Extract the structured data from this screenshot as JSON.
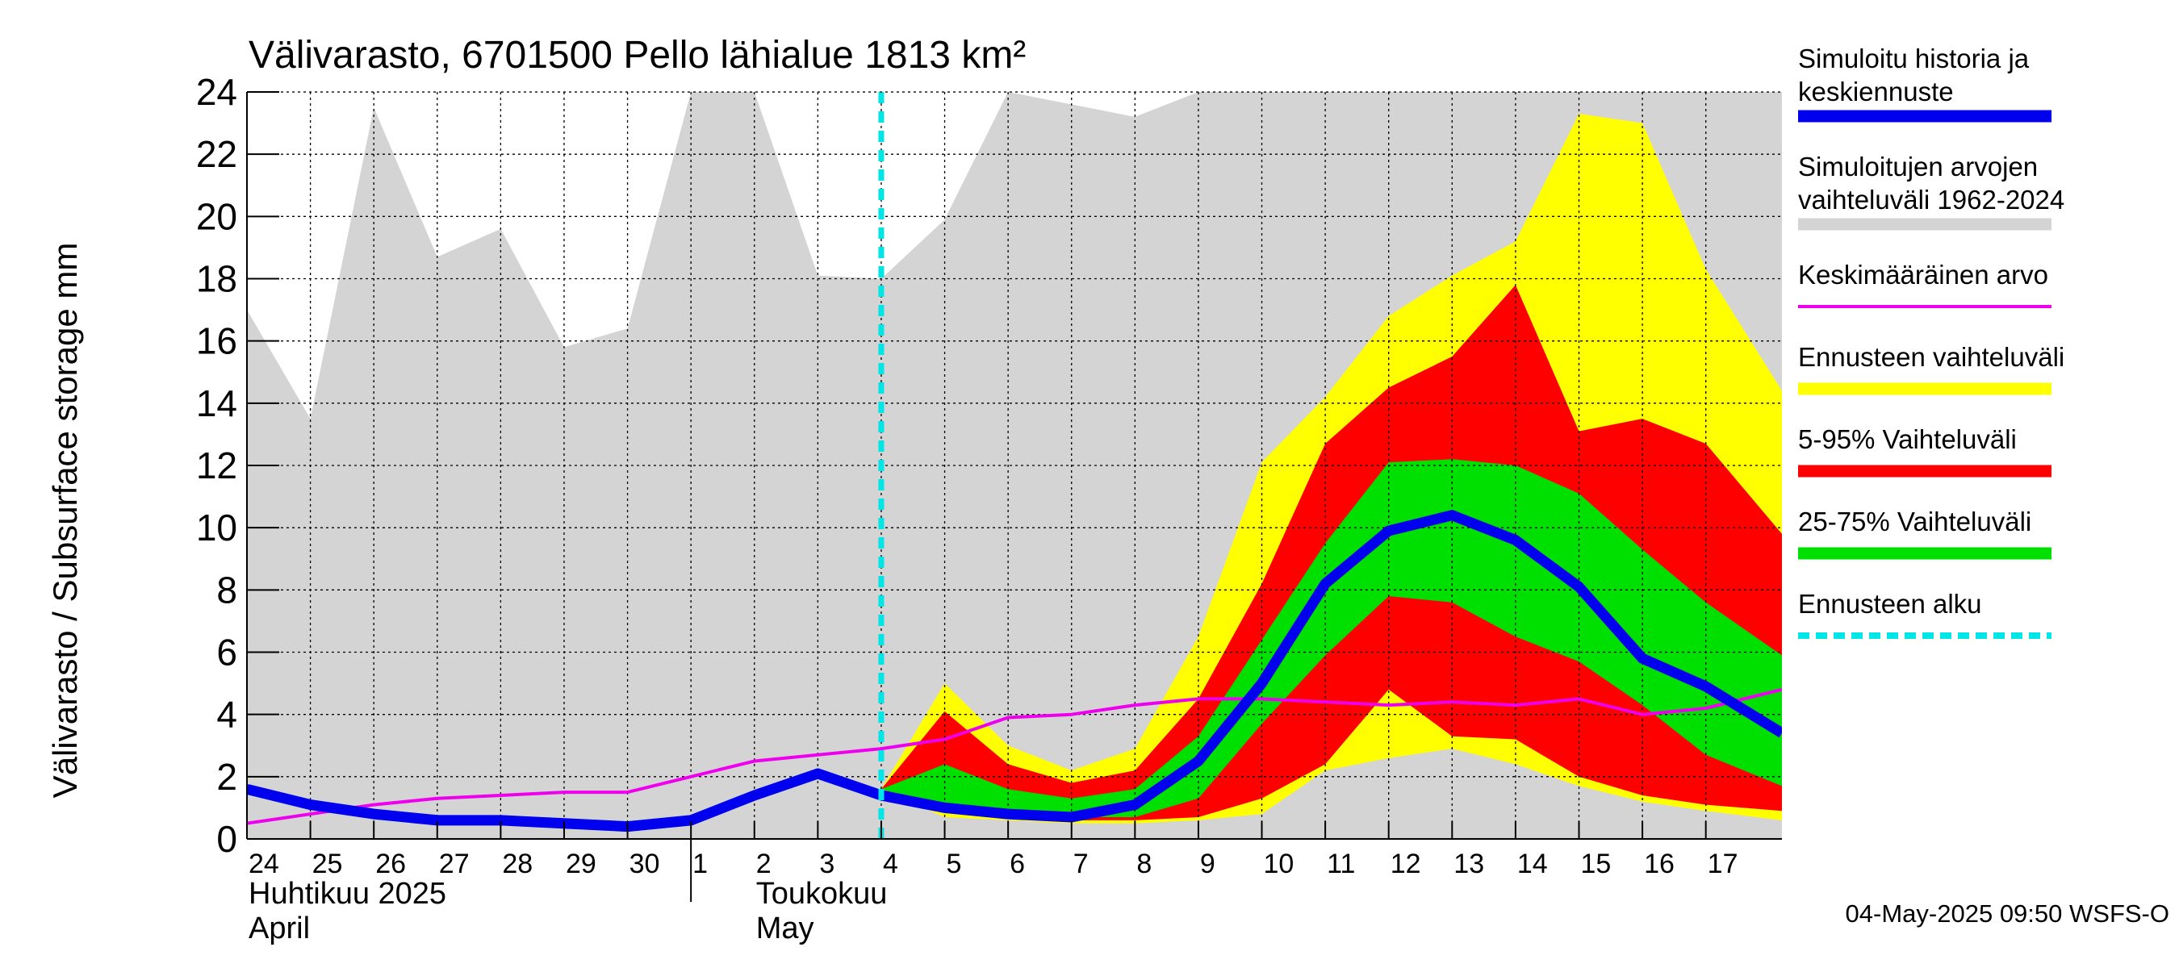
{
  "chart_data": {
    "type": "area",
    "title": "Välivarasto, 6701500 Pello lähialue 1813 km²",
    "ylabel": "Välivarasto / Subsurface storage  mm",
    "xlabel": "",
    "ylim": [
      0,
      24
    ],
    "yticks": [
      0,
      2,
      4,
      6,
      8,
      10,
      12,
      14,
      16,
      18,
      20,
      22,
      24
    ],
    "xlim": [
      0,
      24.2
    ],
    "grid": true,
    "legend_position": "right",
    "x_tick_labels": [
      {
        "x": 0,
        "label": "24"
      },
      {
        "x": 1,
        "label": "25"
      },
      {
        "x": 2,
        "label": "26"
      },
      {
        "x": 3,
        "label": "27"
      },
      {
        "x": 4,
        "label": "28"
      },
      {
        "x": 5,
        "label": "29"
      },
      {
        "x": 6,
        "label": "30"
      },
      {
        "x": 7,
        "label": "1"
      },
      {
        "x": 8,
        "label": "2"
      },
      {
        "x": 9,
        "label": "3"
      },
      {
        "x": 10,
        "label": "4"
      },
      {
        "x": 11,
        "label": "5"
      },
      {
        "x": 12,
        "label": "6"
      },
      {
        "x": 13,
        "label": "7"
      },
      {
        "x": 14,
        "label": "8"
      },
      {
        "x": 15,
        "label": "9"
      },
      {
        "x": 16,
        "label": "10"
      },
      {
        "x": 17,
        "label": "11"
      },
      {
        "x": 18,
        "label": "12"
      },
      {
        "x": 19,
        "label": "13"
      },
      {
        "x": 20,
        "label": "14"
      },
      {
        "x": 21,
        "label": "15"
      },
      {
        "x": 22,
        "label": "16"
      },
      {
        "x": 23,
        "label": "17"
      }
    ],
    "month_labels": [
      {
        "x": 0,
        "line1": "Huhtikuu  2025",
        "line2": "April"
      },
      {
        "x": 8,
        "line1": "Toukokuu",
        "line2": "May"
      }
    ],
    "month_divider_x": 7,
    "forecast_start_x": 10,
    "timestamp": "04-May-2025 09:50 WSFS-O",
    "colors": {
      "history_band": "#d4d4d4",
      "forecast_band": "#ffff00",
      "band_5_95": "#ff0000",
      "band_25_75": "#00e000",
      "median": "#0000ee",
      "mean": "#ee00ee",
      "forecast_start": "#00e5e5"
    },
    "legend": [
      {
        "label": "Simuloitu historia ja keskiennuste",
        "line1": "Simuloitu historia ja",
        "line2": "keskiennuste",
        "color": "#0000ee",
        "style": "thick"
      },
      {
        "label": "Simuloitujen arvojen vaihteluväli 1962-2024",
        "line1": "Simuloitujen arvojen",
        "line2": "vaihteluväli 1962-2024",
        "color": "#d4d4d4",
        "style": "thick"
      },
      {
        "label": "Keskimääräinen arvo",
        "line1": "Keskimääräinen arvo",
        "line2": "",
        "color": "#ee00ee",
        "style": "thin"
      },
      {
        "label": "Ennusteen vaihteluväli",
        "line1": "Ennusteen vaihteluväli",
        "line2": "",
        "color": "#ffff00",
        "style": "thick"
      },
      {
        "label": "5-95% Vaihteluväli",
        "line1": "5-95% Vaihteluväli",
        "line2": "",
        "color": "#ff0000",
        "style": "thick"
      },
      {
        "label": "25-75% Vaihteluväli",
        "line1": "25-75% Vaihteluväli",
        "line2": "",
        "color": "#00e000",
        "style": "thick"
      },
      {
        "label": "Ennusteen alku",
        "line1": "Ennusteen alku",
        "line2": "",
        "color": "#00e5e5",
        "style": "dashed"
      }
    ],
    "series": [
      {
        "name": "Simuloitujen arvojen vaihteluväli 1962-2024",
        "kind": "band",
        "x": [
          0,
          1,
          2,
          3,
          4,
          5,
          6,
          7,
          8,
          9,
          10,
          11,
          12,
          13,
          14,
          15,
          16,
          17,
          18,
          19,
          20,
          21,
          22,
          23,
          24.2
        ],
        "low": [
          0,
          0,
          0,
          0,
          0,
          0,
          0,
          0,
          0,
          0,
          0,
          0,
          0,
          0,
          0,
          0,
          0,
          0,
          0,
          0,
          0,
          0,
          0,
          0,
          0
        ],
        "high": [
          17.0,
          13.5,
          23.5,
          18.7,
          19.6,
          15.8,
          16.4,
          24,
          24,
          18.1,
          18.0,
          19.9,
          24,
          23.6,
          23.2,
          24,
          24,
          24,
          24,
          24,
          24,
          24,
          24,
          24,
          24
        ]
      },
      {
        "name": "Ennusteen vaihteluväli",
        "kind": "band",
        "x": [
          10,
          11,
          12,
          13,
          14,
          15,
          16,
          17,
          18,
          19,
          20,
          21,
          22,
          23,
          24.2
        ],
        "low": [
          1.6,
          0.7,
          0.6,
          0.5,
          0.5,
          0.6,
          0.8,
          2.2,
          2.6,
          2.9,
          2.4,
          1.7,
          1.2,
          0.9,
          0.6
        ],
        "high": [
          1.6,
          5.0,
          3.0,
          2.2,
          2.9,
          6.5,
          12.1,
          14.2,
          16.8,
          18.1,
          19.2,
          23.3,
          23.0,
          18.3,
          14.4
        ]
      },
      {
        "name": "5-95% Vaihteluväli",
        "kind": "band",
        "x": [
          10,
          11,
          12,
          13,
          14,
          15,
          16,
          17,
          18,
          19,
          20,
          21,
          22,
          23,
          24.2
        ],
        "low": [
          1.6,
          0.9,
          0.7,
          0.6,
          0.6,
          0.7,
          1.3,
          2.4,
          4.8,
          3.3,
          3.2,
          2.0,
          1.4,
          1.1,
          0.9
        ],
        "high": [
          1.6,
          4.1,
          2.4,
          1.8,
          2.2,
          4.5,
          8.2,
          12.7,
          14.5,
          15.5,
          17.8,
          13.1,
          13.5,
          12.7,
          9.8
        ]
      },
      {
        "name": "25-75% Vaihteluväli",
        "kind": "band",
        "x": [
          10,
          11,
          12,
          13,
          14,
          15,
          16,
          17,
          18,
          19,
          20,
          21,
          22,
          23,
          24.2
        ],
        "low": [
          1.6,
          1.0,
          0.8,
          0.7,
          0.7,
          1.3,
          3.7,
          5.9,
          7.8,
          7.6,
          6.5,
          5.7,
          4.3,
          2.7,
          1.7
        ],
        "high": [
          1.6,
          2.4,
          1.6,
          1.3,
          1.6,
          3.3,
          6.4,
          9.5,
          12.1,
          12.2,
          12.0,
          11.1,
          9.3,
          7.6,
          5.9
        ]
      },
      {
        "name": "Keskimääräinen arvo",
        "kind": "line",
        "x": [
          0,
          1,
          2,
          3,
          4,
          5,
          6,
          7,
          8,
          9,
          10,
          11,
          12,
          13,
          14,
          15,
          16,
          17,
          18,
          19,
          20,
          21,
          22,
          23,
          24.2
        ],
        "values": [
          0.5,
          0.8,
          1.1,
          1.3,
          1.4,
          1.5,
          1.5,
          2.0,
          2.5,
          2.7,
          2.9,
          3.2,
          3.9,
          4.0,
          4.3,
          4.5,
          4.5,
          4.4,
          4.3,
          4.4,
          4.3,
          4.5,
          4.0,
          4.2,
          4.8
        ]
      },
      {
        "name": "Simuloitu historia ja keskiennuste",
        "kind": "line",
        "x": [
          0,
          1,
          2,
          3,
          4,
          5,
          6,
          7,
          8,
          9,
          10,
          11,
          12,
          13,
          14,
          15,
          16,
          17,
          18,
          19,
          20,
          21,
          22,
          23,
          24.2
        ],
        "values": [
          1.6,
          1.1,
          0.8,
          0.6,
          0.6,
          0.5,
          0.4,
          0.6,
          1.4,
          2.1,
          1.4,
          1.0,
          0.8,
          0.7,
          1.1,
          2.5,
          5.0,
          8.2,
          9.9,
          10.4,
          9.6,
          8.1,
          5.8,
          4.9,
          3.4
        ]
      }
    ]
  }
}
